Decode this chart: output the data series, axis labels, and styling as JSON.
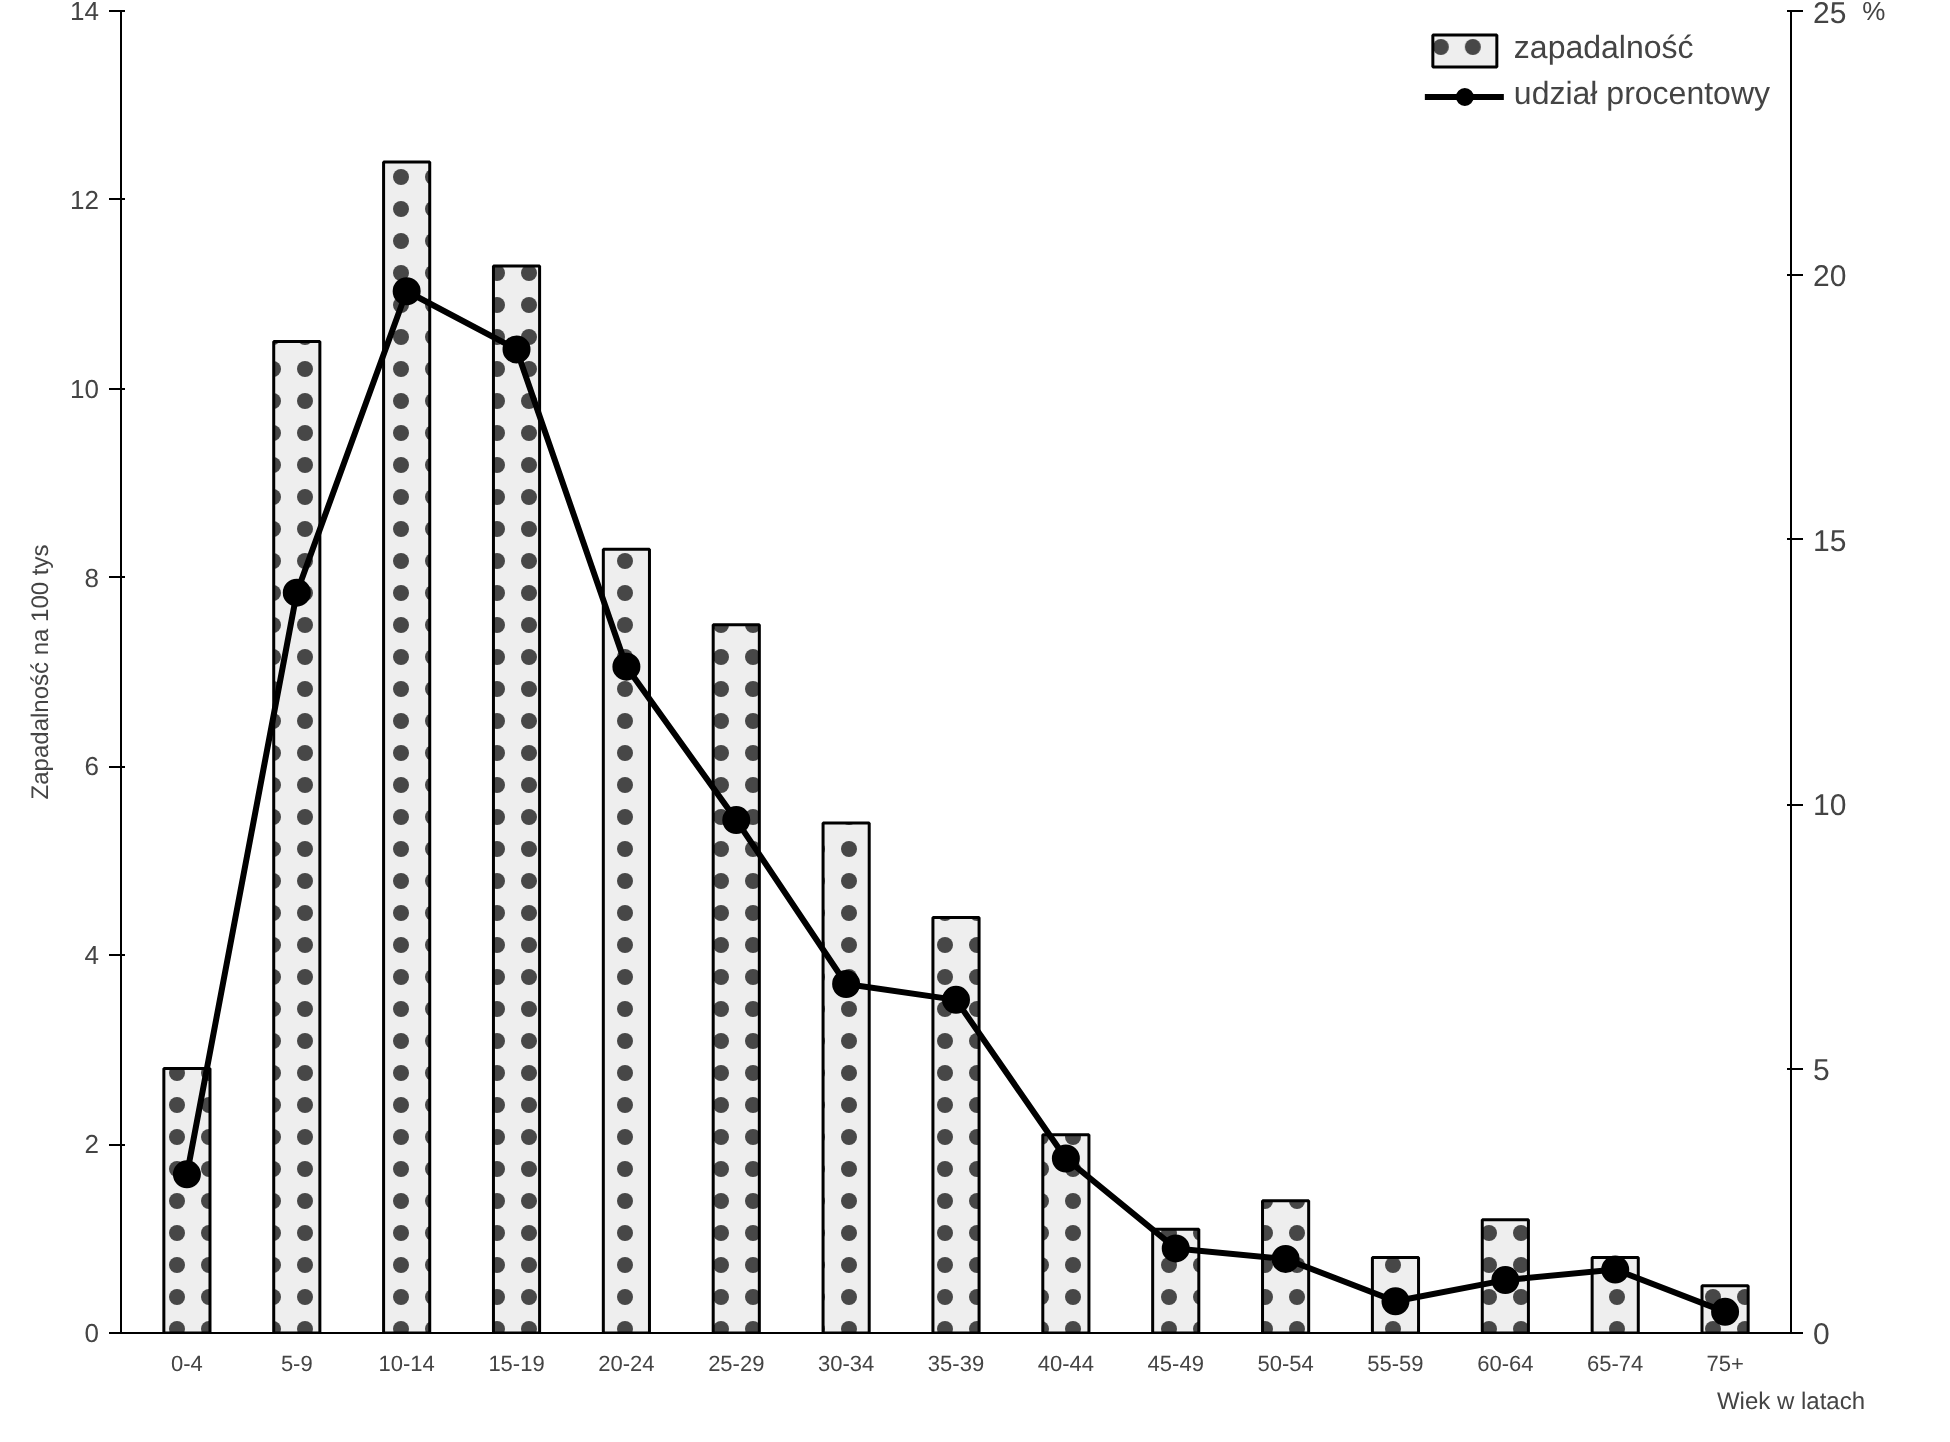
{
  "chart_data": {
    "type": "bar",
    "xlabel": "Wiek w latach",
    "ylabel": "Zapadalność na 100 tys",
    "y2label": "%",
    "categories": [
      "0-4",
      "5-9",
      "10-14",
      "15-19",
      "20-24",
      "25-29",
      "30-34",
      "35-39",
      "40-44",
      "45-49",
      "50-54",
      "55-59",
      "60-64",
      "65-74",
      "75+"
    ],
    "series": [
      {
        "name": "zapadalność",
        "color": "#eeeeee",
        "values": [
          2.8,
          10.5,
          12.4,
          11.3,
          8.3,
          7.5,
          5.4,
          4.4,
          2.1,
          1.1,
          1.4,
          0.8,
          1.2,
          0.8,
          0.5
        ]
      },
      {
        "name": "udział procentowy",
        "type": "line",
        "axis": "y2",
        "color": "#000000",
        "values": [
          3.0,
          14.0,
          19.7,
          18.6,
          12.6,
          9.7,
          6.6,
          6.3,
          3.3,
          1.6,
          1.4,
          0.6,
          1.0,
          1.2,
          0.4
        ]
      }
    ],
    "ylim": [
      0,
      14
    ],
    "yticks": [
      0,
      2,
      4,
      6,
      8,
      10,
      12,
      14
    ],
    "y2lim": [
      0,
      25
    ],
    "y2ticks": [
      0,
      5,
      10,
      15,
      20,
      25
    ],
    "marker": "circle",
    "line_style": "solid",
    "grid": false,
    "legend": "top right"
  }
}
